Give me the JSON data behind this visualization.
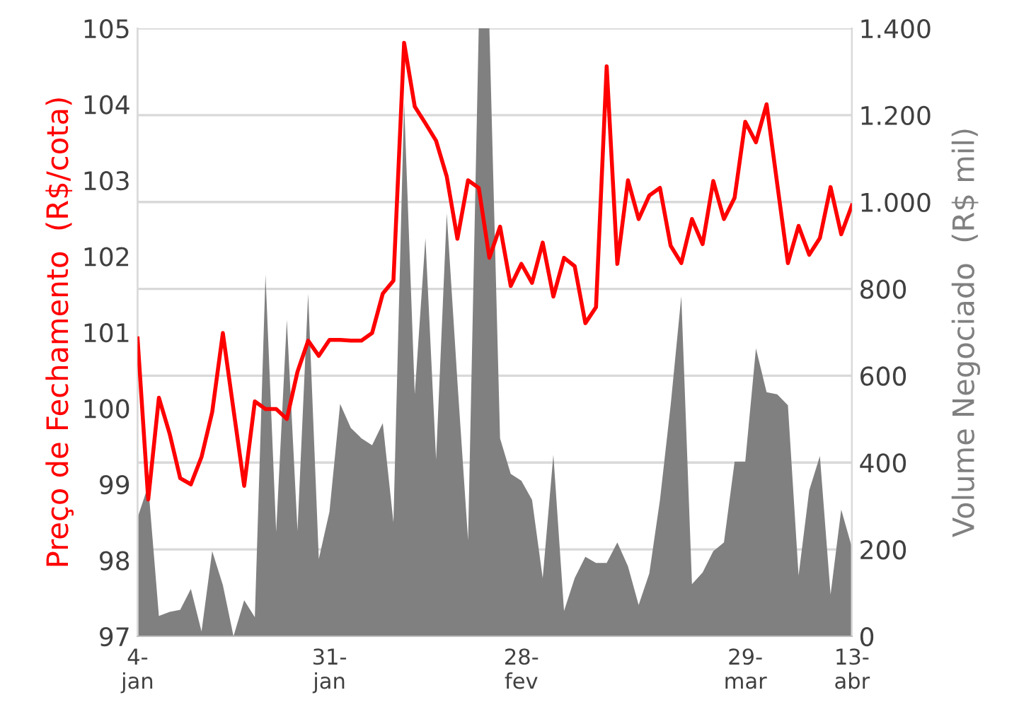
{
  "chart_data": {
    "type": "line",
    "ylabel": "Preço de Fechamento  (R$/cota)",
    "y2label": "Volume Negociado  (R$ mil)",
    "categories": [
      "4-\njan",
      null,
      null,
      null,
      null,
      null,
      null,
      null,
      null,
      null,
      null,
      null,
      null,
      null,
      null,
      null,
      null,
      null,
      "31-\njan",
      null,
      null,
      null,
      null,
      null,
      null,
      null,
      null,
      null,
      null,
      null,
      null,
      null,
      null,
      null,
      null,
      null,
      "28-\nfev",
      null,
      null,
      null,
      null,
      null,
      null,
      null,
      null,
      null,
      null,
      null,
      null,
      null,
      null,
      null,
      null,
      null,
      null,
      null,
      null,
      "29-\nmar",
      null,
      null,
      null,
      null,
      null,
      null,
      null,
      null,
      null,
      "13-\nabr"
    ],
    "series": [
      {
        "type": "area",
        "axis": "y2",
        "color": "#808080",
        "values": [
          273,
          347,
          47,
          56,
          61,
          109,
          11,
          196,
          118,
          0,
          83,
          44,
          833,
          240,
          729,
          243,
          789,
          178,
          287,
          535,
          480,
          456,
          440,
          491,
          262,
          1231,
          557,
          917,
          407,
          974,
          587,
          221,
          1400,
          1400,
          456,
          374,
          358,
          314,
          134,
          418,
          58,
          134,
          183,
          169,
          169,
          216,
          161,
          72,
          145,
          314,
          532,
          783,
          120,
          147,
          196,
          216,
          402,
          402,
          663,
          562,
          557,
          532,
          140,
          336,
          415,
          96,
          292,
          205
        ]
      },
      {
        "color": "#ff0000",
        "values": [
          100.92,
          98.8,
          100.14,
          99.67,
          99.08,
          99.0,
          99.36,
          99.95,
          100.99,
          99.98,
          98.98,
          100.09,
          99.99,
          99.99,
          99.86,
          100.48,
          100.89,
          100.69,
          100.9,
          100.9,
          100.89,
          100.89,
          100.99,
          101.51,
          101.68,
          104.81,
          103.97,
          103.75,
          103.52,
          103.05,
          102.23,
          103.0,
          102.9,
          101.98,
          102.39,
          101.61,
          101.9,
          101.65,
          102.18,
          101.47,
          101.98,
          101.87,
          101.12,
          101.33,
          104.5,
          101.9,
          103.0,
          102.49,
          102.8,
          102.9,
          102.14,
          101.91,
          102.49,
          102.16,
          102.99,
          102.49,
          102.77,
          103.77,
          103.5,
          104.0,
          102.95,
          101.91,
          102.4,
          102.02,
          102.24,
          102.91,
          102.29,
          102.67
        ]
      }
    ],
    "ylim": [
      97,
      105
    ],
    "yticks": [
      97,
      98,
      99,
      100,
      101,
      102,
      103,
      104,
      105
    ],
    "y2lim": [
      0,
      1400
    ],
    "y2ticks": [
      0,
      200,
      400,
      600,
      800,
      {
        "value": 1000,
        "label": "1.000"
      },
      {
        "value": 1200,
        "label": "1.200"
      },
      {
        "value": 1400,
        "label": "1.400"
      }
    ],
    "grid": "y",
    "marker": "none",
    "line_style": "solid"
  }
}
